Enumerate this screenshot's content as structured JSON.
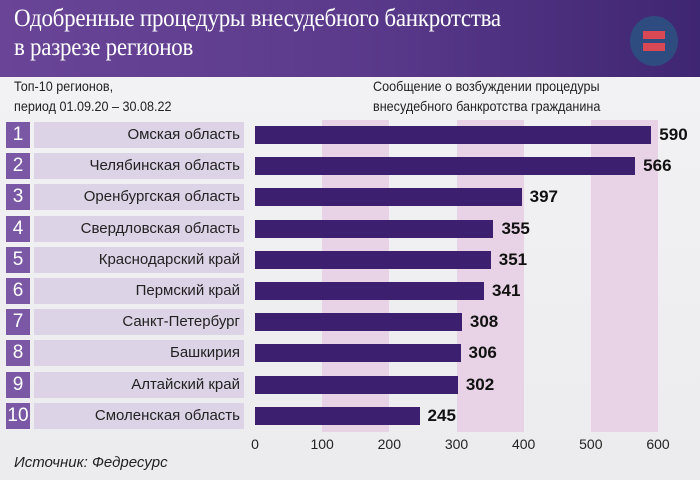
{
  "header": {
    "title_line1": "Одобренные процедуры внесудебного банкротства",
    "title_line2": "в разрезе регионов",
    "logo_colors": {
      "circle": "#2f4c80",
      "bars": "#d94955"
    }
  },
  "subtitle_left": {
    "line1": "Топ-10 регионов,",
    "line2": "период 01.09.20 – 30.08.22"
  },
  "subtitle_right": {
    "line1": "Сообщение о возбуждении процедуры",
    "line2": "внесудебного банкротства гражданина"
  },
  "source": "Источник: Федресурс",
  "colors": {
    "bar": "#3c1f6e",
    "rank_box": "#7b58a6",
    "name_box": "#ddd3e6",
    "band": "#e7d3e5",
    "header": "#5b3a8c"
  },
  "chart_data": {
    "type": "bar",
    "orientation": "horizontal",
    "ranks": [
      "1",
      "2",
      "3",
      "4",
      "5",
      "6",
      "7",
      "8",
      "9",
      "10"
    ],
    "categories": [
      "Омская область",
      "Челябинская область",
      "Оренбургская область",
      "Свердловская область",
      "Краснодарский край",
      "Пермский край",
      "Санкт-Петербург",
      "Башкирия",
      "Алтайский край",
      "Смоленская область"
    ],
    "values": [
      590,
      566,
      397,
      355,
      351,
      341,
      308,
      306,
      302,
      245
    ],
    "xlim": [
      0,
      600
    ],
    "xticks": [
      "0",
      "100",
      "200",
      "300",
      "400",
      "500",
      "600"
    ],
    "shaded_bands": [
      [
        100,
        200
      ],
      [
        300,
        400
      ],
      [
        500,
        600
      ]
    ],
    "data_labels": true
  }
}
